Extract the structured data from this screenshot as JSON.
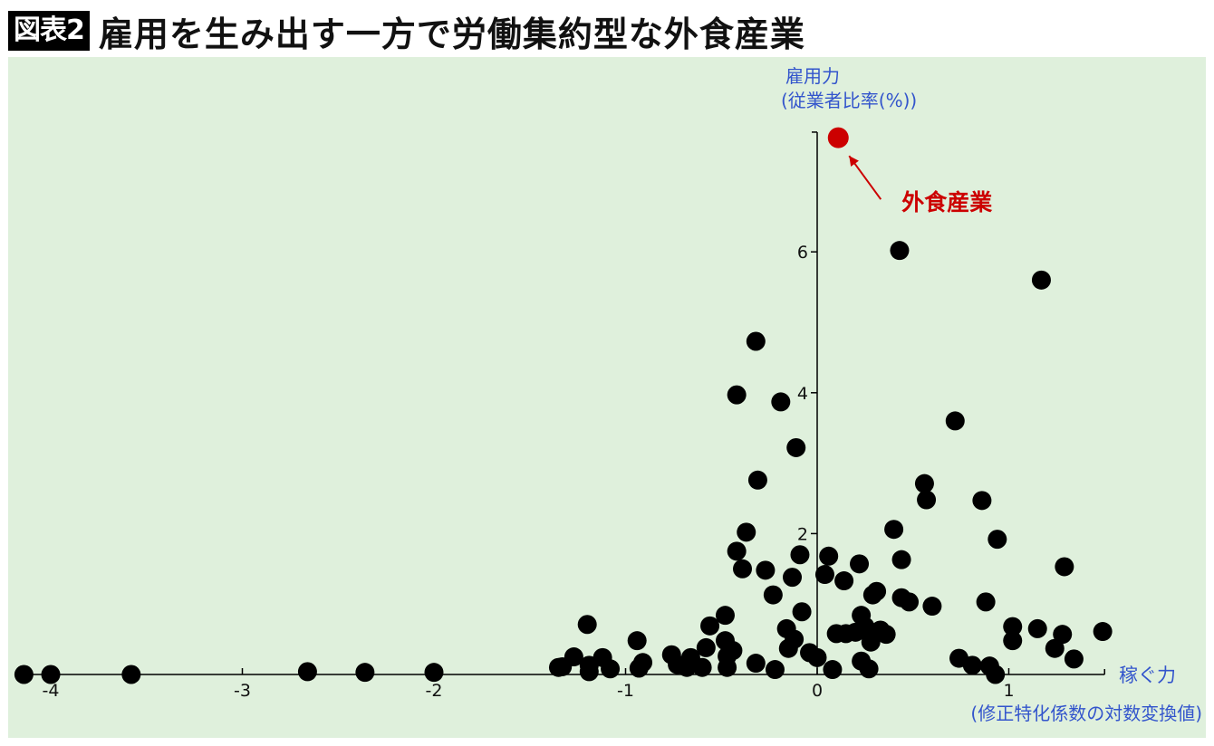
{
  "header": {
    "badge": "図表2",
    "title": "雇用を生み出す一方で労働集約型な外食産業"
  },
  "colors": {
    "background": "#dff0dc",
    "points": "#000000",
    "highlight": "#cc0000",
    "axis_label": "#3355cc"
  },
  "chart_data": {
    "type": "scatter",
    "title": "雇用を生み出す一方で労働集約型な外食産業",
    "xlabel": "稼ぐ力",
    "xlabel_sub": "(修正特化係数の対数変換値)",
    "ylabel": "雇用力",
    "ylabel_sub": "(従業者比率(%))",
    "xlim": [
      -4.15,
      1.5
    ],
    "ylim": [
      0,
      7.7
    ],
    "x_ticks": [
      -4,
      -3,
      -2,
      -1,
      0,
      1
    ],
    "x_tick_labels": [
      "-4",
      "-3",
      "-2",
      "-1",
      "0",
      "1"
    ],
    "y_ticks": [
      2,
      4,
      6
    ],
    "y_tick_labels": [
      "2",
      "4",
      "6"
    ],
    "grid": false,
    "highlight": {
      "label": "外食産業",
      "x": 0.11,
      "y": 7.62
    },
    "points": [
      [
        -4.14,
        0.0
      ],
      [
        -4.0,
        0.0
      ],
      [
        -3.58,
        0.0
      ],
      [
        -2.66,
        0.04
      ],
      [
        -2.36,
        0.03
      ],
      [
        -2.0,
        0.03
      ],
      [
        -1.35,
        0.1
      ],
      [
        -1.33,
        0.11
      ],
      [
        -1.27,
        0.25
      ],
      [
        -1.2,
        0.71
      ],
      [
        -1.19,
        0.13
      ],
      [
        -1.19,
        0.04
      ],
      [
        -1.12,
        0.24
      ],
      [
        -1.08,
        0.08
      ],
      [
        -0.94,
        0.48
      ],
      [
        -0.93,
        0.09
      ],
      [
        -0.91,
        0.17
      ],
      [
        -0.76,
        0.28
      ],
      [
        -0.73,
        0.14
      ],
      [
        -0.68,
        0.1
      ],
      [
        -0.66,
        0.24
      ],
      [
        -0.6,
        0.1
      ],
      [
        -0.58,
        0.38
      ],
      [
        -0.56,
        0.69
      ],
      [
        -0.48,
        0.84
      ],
      [
        -0.48,
        0.48
      ],
      [
        -0.47,
        0.26
      ],
      [
        -0.47,
        0.1
      ],
      [
        -0.44,
        0.34
      ],
      [
        -0.42,
        1.75
      ],
      [
        -0.42,
        3.97
      ],
      [
        -0.39,
        1.5
      ],
      [
        -0.37,
        2.02
      ],
      [
        -0.32,
        4.73
      ],
      [
        -0.32,
        0.16
      ],
      [
        -0.31,
        2.76
      ],
      [
        -0.27,
        1.48
      ],
      [
        -0.23,
        1.13
      ],
      [
        -0.22,
        0.07
      ],
      [
        -0.19,
        3.87
      ],
      [
        -0.16,
        0.65
      ],
      [
        -0.15,
        0.37
      ],
      [
        -0.13,
        1.38
      ],
      [
        -0.12,
        0.5
      ],
      [
        -0.11,
        3.22
      ],
      [
        -0.09,
        1.7
      ],
      [
        -0.08,
        0.89
      ],
      [
        -0.04,
        0.31
      ],
      [
        0.0,
        0.24
      ],
      [
        0.04,
        1.42
      ],
      [
        0.06,
        1.68
      ],
      [
        0.08,
        0.07
      ],
      [
        0.1,
        0.58
      ],
      [
        0.14,
        1.33
      ],
      [
        0.15,
        0.58
      ],
      [
        0.2,
        0.6
      ],
      [
        0.22,
        1.57
      ],
      [
        0.23,
        0.84
      ],
      [
        0.23,
        0.19
      ],
      [
        0.25,
        0.68
      ],
      [
        0.27,
        0.08
      ],
      [
        0.28,
        0.46
      ],
      [
        0.29,
        1.13
      ],
      [
        0.31,
        1.18
      ],
      [
        0.33,
        0.63
      ],
      [
        0.36,
        0.57
      ],
      [
        0.4,
        2.06
      ],
      [
        0.43,
        6.02
      ],
      [
        0.44,
        1.63
      ],
      [
        0.44,
        1.09
      ],
      [
        0.48,
        1.03
      ],
      [
        0.56,
        2.71
      ],
      [
        0.57,
        2.48
      ],
      [
        0.6,
        0.97
      ],
      [
        0.72,
        3.6
      ],
      [
        0.74,
        0.23
      ],
      [
        0.81,
        0.13
      ],
      [
        0.86,
        2.47
      ],
      [
        0.88,
        1.03
      ],
      [
        0.9,
        0.12
      ],
      [
        0.93,
        0.0
      ],
      [
        0.94,
        1.92
      ],
      [
        1.02,
        0.48
      ],
      [
        1.02,
        0.68
      ],
      [
        1.15,
        0.65
      ],
      [
        1.17,
        5.6
      ],
      [
        1.24,
        0.37
      ],
      [
        1.28,
        0.57
      ],
      [
        1.29,
        1.53
      ],
      [
        1.34,
        0.22
      ],
      [
        1.49,
        0.61
      ]
    ]
  }
}
